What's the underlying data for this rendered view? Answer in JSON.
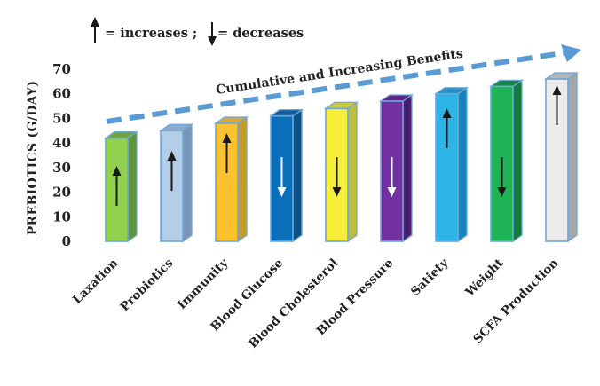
{
  "chart_data": {
    "type": "bar",
    "title": "",
    "xlabel": "",
    "ylabel": "PREBIOTICS (G/DAY)",
    "ylim": [
      0,
      70
    ],
    "yticks": [
      0,
      10,
      20,
      30,
      40,
      50,
      60,
      70
    ],
    "grid": false,
    "categories": [
      "Laxation",
      "Probiotics",
      "Immunity",
      "Blood Glucose",
      "Blood  Cholesterol",
      "Blood Pressure",
      "Satiety",
      "Weight",
      "SCFA Production"
    ],
    "values": [
      42,
      45,
      48,
      51,
      54,
      57,
      60,
      63,
      66
    ],
    "effects": [
      "increases",
      "increases",
      "increases",
      "decreases",
      "decreases",
      "decreases",
      "increases",
      "decreases",
      "increases"
    ],
    "colors": {
      "front": [
        "#92d050",
        "#b4cde9",
        "#fbc230",
        "#0a6fb8",
        "#f6ee3a",
        "#7030a0",
        "#2eb3e6",
        "#1eb356",
        "#ececec"
      ],
      "side": [
        "#5d953a",
        "#7a93b8",
        "#c59a2c",
        "#0f4f87",
        "#bdbd3e",
        "#4a1f72",
        "#1585bd",
        "#137a3b",
        "#a6a6a6"
      ],
      "top": [
        "#6ea43f",
        "#8fa9cc",
        "#d7a93b",
        "#145d9e",
        "#c9c946",
        "#592889",
        "#2a8fc7",
        "#168a42",
        "#b7b7b7"
      ],
      "arrow": [
        "#1a1a1a",
        "#1a1a1a",
        "#1a1a1a",
        "#ffffff",
        "#1a1a1a",
        "#ffffff",
        "#1a1a1a",
        "#1a1a1a",
        "#1a1a1a"
      ],
      "outline": "#6fa7d8",
      "trend": "#5b9bd5"
    },
    "legend": {
      "increase_label": "= increases ;",
      "decrease_label": "= decreases",
      "placement": "top-left"
    },
    "annotation": {
      "text": "Cumulative and Increasing Benefits",
      "style": "dashed upward trend arrow"
    }
  }
}
